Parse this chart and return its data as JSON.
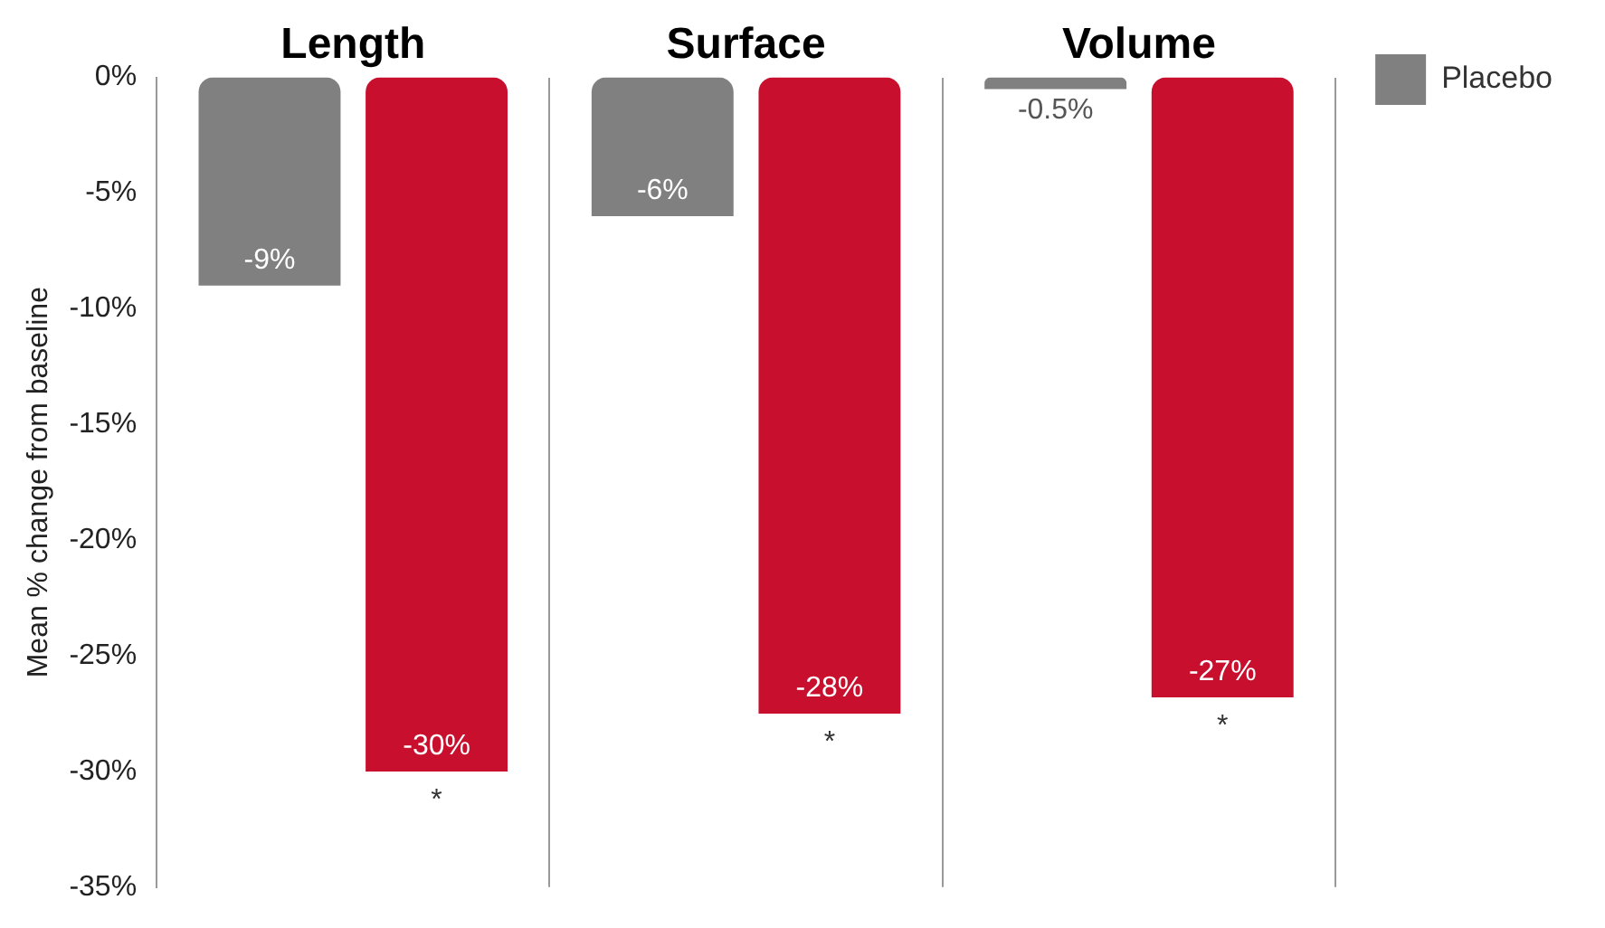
{
  "chart_data": {
    "type": "bar",
    "ylabel": "Mean % change from baseline",
    "categories": [
      "Length",
      "Surface",
      "Volume"
    ],
    "series": [
      {
        "name": "Placebo",
        "color": "#808080",
        "values": [
          -9,
          -6,
          -0.5
        ],
        "value_labels": [
          "-9%",
          "-6%",
          "-0.5%"
        ]
      },
      {
        "color": "#c8102e",
        "values": [
          -30,
          -27.5,
          -26.8
        ],
        "value_labels": [
          "-30%",
          "-28%",
          "-27%"
        ]
      }
    ],
    "ylim": [
      -35,
      0
    ],
    "yticks": [
      {
        "value": 0,
        "label": "0%"
      },
      {
        "value": -5,
        "label": "-5%"
      },
      {
        "value": -10,
        "label": "-10%"
      },
      {
        "value": -15,
        "label": "-15%"
      },
      {
        "value": -20,
        "label": "-20%"
      },
      {
        "value": -25,
        "label": "-25%"
      },
      {
        "value": -30,
        "label": "-30%"
      },
      {
        "value": -35,
        "label": "-35%"
      }
    ],
    "annotations": [
      "*",
      "*",
      "*"
    ],
    "grid": "x",
    "legend": "right"
  }
}
